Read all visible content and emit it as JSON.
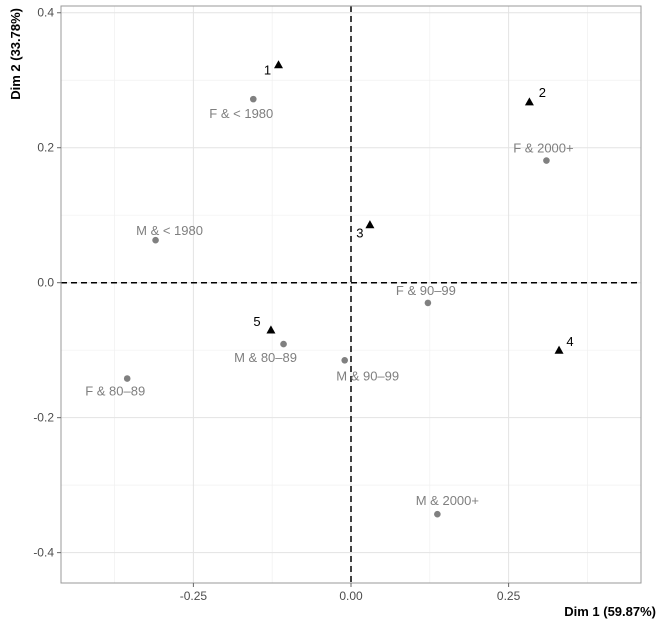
{
  "chart_data": {
    "type": "scatter",
    "title": "",
    "xlabel": "Dim 1 (59.87%)",
    "ylabel": "Dim 2 (33.78%)",
    "xlim": [
      -0.46,
      0.46
    ],
    "ylim": [
      -0.445,
      0.41
    ],
    "x_ticks": [
      -0.25,
      0.0,
      0.25
    ],
    "x_tick_labels": [
      "-0.25",
      "0.00",
      "0.25"
    ],
    "y_ticks": [
      -0.4,
      -0.2,
      0.0,
      0.2,
      0.4
    ],
    "y_tick_labels": [
      "-0.4",
      "-0.2",
      "0.0",
      "0.2",
      "0.4"
    ],
    "grid": true,
    "reference_lines": {
      "x": 0,
      "y": 0,
      "style": "dashed"
    },
    "series": [
      {
        "marker": "circle",
        "color": "#808080",
        "points": [
          {
            "label": "F & < 1980",
            "x": -0.155,
            "y": 0.272
          },
          {
            "label": "F & 2000+",
            "x": 0.31,
            "y": 0.181
          },
          {
            "label": "M & < 1980",
            "x": -0.31,
            "y": 0.063
          },
          {
            "label": "F & 90–99",
            "x": 0.122,
            "y": -0.03
          },
          {
            "label": "M & 80–89",
            "x": -0.107,
            "y": -0.091
          },
          {
            "label": "M & 90–99",
            "x": -0.01,
            "y": -0.115
          },
          {
            "label": "F & 80–89",
            "x": -0.355,
            "y": -0.142
          },
          {
            "label": "M & 2000+",
            "x": 0.137,
            "y": -0.343
          }
        ]
      },
      {
        "marker": "triangle",
        "color": "#000000",
        "points": [
          {
            "label": "1",
            "x": -0.115,
            "y": 0.323
          },
          {
            "label": "2",
            "x": 0.283,
            "y": 0.268
          },
          {
            "label": "3",
            "x": 0.03,
            "y": 0.086
          },
          {
            "label": "4",
            "x": 0.33,
            "y": -0.1
          },
          {
            "label": "5",
            "x": -0.127,
            "y": -0.07
          }
        ]
      }
    ]
  }
}
